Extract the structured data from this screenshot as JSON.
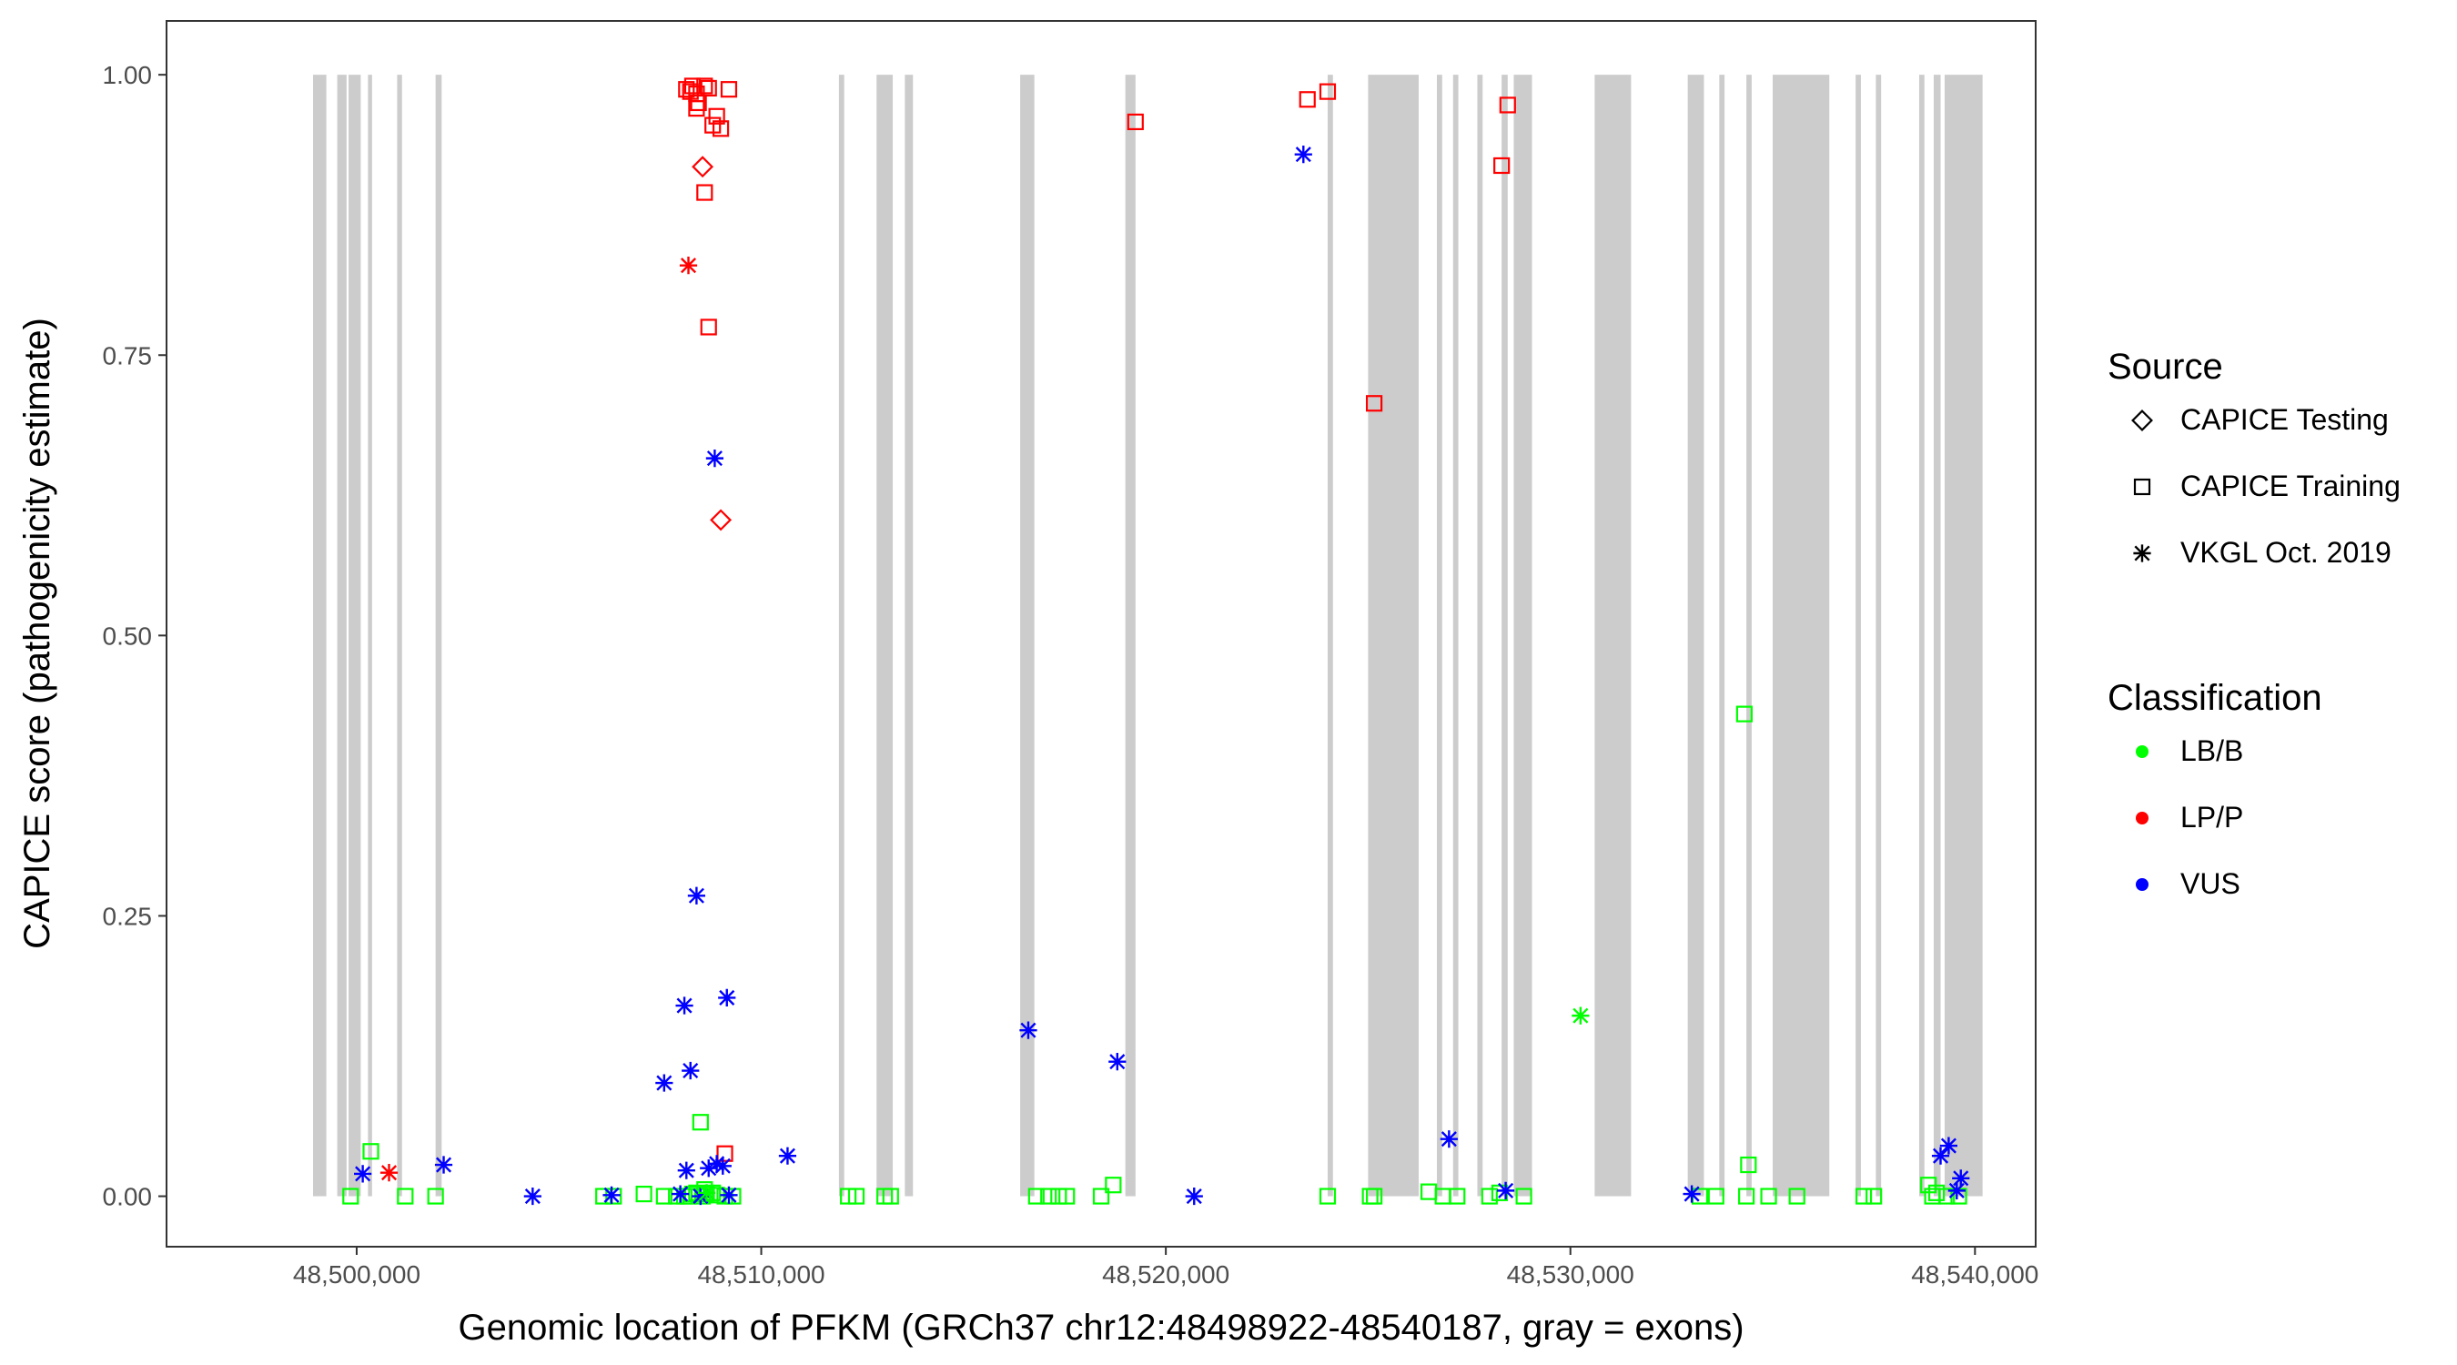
{
  "chart_data": {
    "type": "scatter",
    "xlabel": "Genomic location of PFKM (GRCh37 chr12:48498922-48540187, gray = exons)",
    "ylabel": "CAPICE score (pathogenicity estimate)",
    "xlim": [
      48495300,
      48541500
    ],
    "ylim": [
      -0.045,
      1.048
    ],
    "x_ticks": [
      48500000,
      48510000,
      48520000,
      48530000,
      48540000
    ],
    "x_tick_labels": [
      "48,500,000",
      "48,510,000",
      "48,520,000",
      "48,530,000",
      "48,540,000"
    ],
    "y_ticks": [
      0.0,
      0.25,
      0.5,
      0.75,
      1.0
    ],
    "y_tick_labels": [
      "0.00",
      "0.25",
      "0.50",
      "0.75",
      "1.00"
    ],
    "grid": false,
    "legend_position": "right",
    "legends": [
      {
        "title": "Source",
        "entries": [
          {
            "label": "CAPICE Testing",
            "shape": "diamond"
          },
          {
            "label": "CAPICE Training",
            "shape": "square"
          },
          {
            "label": "VKGL Oct. 2019",
            "shape": "asterisk"
          }
        ]
      },
      {
        "title": "Classification",
        "entries": [
          {
            "label": "LB/B",
            "color": "#00ff00"
          },
          {
            "label": "LP/P",
            "color": "#ff0000"
          },
          {
            "label": "VUS",
            "color": "#0000ff"
          }
        ]
      }
    ],
    "exon_color": "#cccccc",
    "exons": [
      [
        48498922,
        48499250
      ],
      [
        48499520,
        48499750
      ],
      [
        48499800,
        48500100
      ],
      [
        48500280,
        48500380
      ],
      [
        48501000,
        48501120
      ],
      [
        48501950,
        48502100
      ],
      [
        48511920,
        48512050
      ],
      [
        48512850,
        48513250
      ],
      [
        48513550,
        48513750
      ],
      [
        48516400,
        48516750
      ],
      [
        48519000,
        48519250
      ],
      [
        48524000,
        48524130
      ],
      [
        48525000,
        48526250
      ],
      [
        48526700,
        48526830
      ],
      [
        48527100,
        48527230
      ],
      [
        48527700,
        48527830
      ],
      [
        48528300,
        48528450
      ],
      [
        48528600,
        48529050
      ],
      [
        48530600,
        48531500
      ],
      [
        48532900,
        48533300
      ],
      [
        48533680,
        48533810
      ],
      [
        48534350,
        48534480
      ],
      [
        48535000,
        48536400
      ],
      [
        48537050,
        48537180
      ],
      [
        48537550,
        48537680
      ],
      [
        48538620,
        48538750
      ],
      [
        48538980,
        48539150
      ],
      [
        48539250,
        48540187
      ]
    ],
    "series": [
      {
        "source": "CAPICE Testing",
        "classification": "LP/P",
        "points": [
          [
            48508550,
            0.918
          ],
          [
            48509000,
            0.603
          ]
        ]
      },
      {
        "source": "CAPICE Training",
        "classification": "LP/P",
        "points": [
          [
            48508150,
            0.987
          ],
          [
            48508250,
            0.985
          ],
          [
            48508300,
            0.99
          ],
          [
            48508400,
            0.983
          ],
          [
            48508450,
            0.975
          ],
          [
            48508600,
            0.99
          ],
          [
            48508700,
            0.988
          ],
          [
            48508800,
            0.955
          ],
          [
            48508900,
            0.963
          ],
          [
            48509000,
            0.952
          ],
          [
            48509200,
            0.987
          ],
          [
            48508400,
            0.97
          ],
          [
            48508600,
            0.895
          ],
          [
            48508700,
            0.775
          ],
          [
            48509100,
            0.038
          ],
          [
            48519250,
            0.958
          ],
          [
            48523500,
            0.978
          ],
          [
            48524000,
            0.985
          ],
          [
            48525150,
            0.707
          ],
          [
            48528300,
            0.919
          ],
          [
            48528450,
            0.973
          ]
        ]
      },
      {
        "source": "CAPICE Training",
        "classification": "LB/B",
        "points": [
          [
            48499850,
            0.0
          ],
          [
            48500350,
            0.04
          ],
          [
            48501200,
            0.0
          ],
          [
            48501950,
            0.0
          ],
          [
            48506100,
            0.0
          ],
          [
            48506350,
            0.0
          ],
          [
            48507100,
            0.002
          ],
          [
            48507600,
            0.0
          ],
          [
            48507900,
            0.0
          ],
          [
            48508100,
            0.0
          ],
          [
            48508200,
            0.0
          ],
          [
            48508300,
            0.002
          ],
          [
            48508400,
            0.003
          ],
          [
            48508500,
            0.066
          ],
          [
            48508550,
            0.0
          ],
          [
            48508600,
            0.006
          ],
          [
            48508650,
            0.002
          ],
          [
            48508800,
            0.003
          ],
          [
            48508900,
            0.001
          ],
          [
            48509100,
            0.0
          ],
          [
            48509300,
            0.0
          ],
          [
            48512150,
            0.0
          ],
          [
            48512350,
            0.0
          ],
          [
            48513050,
            0.0
          ],
          [
            48513200,
            0.0
          ],
          [
            48516800,
            0.0
          ],
          [
            48517100,
            0.0
          ],
          [
            48517350,
            0.0
          ],
          [
            48517550,
            0.0
          ],
          [
            48518400,
            0.0
          ],
          [
            48518700,
            0.01
          ],
          [
            48524000,
            0.0
          ],
          [
            48525050,
            0.0
          ],
          [
            48525150,
            0.0
          ],
          [
            48526500,
            0.004
          ],
          [
            48526850,
            0.0
          ],
          [
            48527200,
            0.0
          ],
          [
            48528000,
            0.0
          ],
          [
            48528250,
            0.003
          ],
          [
            48528850,
            0.0
          ],
          [
            48533200,
            0.0
          ],
          [
            48533600,
            0.0
          ],
          [
            48534300,
            0.43
          ],
          [
            48534400,
            0.028
          ],
          [
            48534350,
            0.0
          ],
          [
            48534900,
            0.0
          ],
          [
            48535600,
            0.0
          ],
          [
            48537250,
            0.0
          ],
          [
            48537500,
            0.0
          ],
          [
            48538850,
            0.01
          ],
          [
            48538950,
            0.0
          ],
          [
            48539050,
            0.003
          ],
          [
            48539300,
            0.0
          ],
          [
            48539600,
            0.0
          ]
        ]
      },
      {
        "source": "VKGL Oct. 2019",
        "classification": "VUS",
        "points": [
          [
            48500150,
            0.02
          ],
          [
            48502150,
            0.028
          ],
          [
            48504350,
            0.0
          ],
          [
            48506300,
            0.001
          ],
          [
            48507600,
            0.101
          ],
          [
            48508000,
            0.002
          ],
          [
            48508100,
            0.17
          ],
          [
            48508150,
            0.023
          ],
          [
            48508250,
            0.112
          ],
          [
            48508400,
            0.268
          ],
          [
            48508500,
            0.0
          ],
          [
            48508700,
            0.025
          ],
          [
            48508850,
            0.658
          ],
          [
            48508900,
            0.029
          ],
          [
            48509050,
            0.027
          ],
          [
            48509150,
            0.177
          ],
          [
            48509200,
            0.001
          ],
          [
            48510650,
            0.036
          ],
          [
            48516600,
            0.148
          ],
          [
            48518800,
            0.12
          ],
          [
            48520700,
            0.0
          ],
          [
            48523400,
            0.929
          ],
          [
            48527000,
            0.051
          ],
          [
            48528400,
            0.005
          ],
          [
            48533000,
            0.002
          ],
          [
            48539150,
            0.036
          ],
          [
            48539350,
            0.045
          ],
          [
            48539550,
            0.005
          ],
          [
            48539650,
            0.016
          ]
        ]
      },
      {
        "source": "VKGL Oct. 2019",
        "classification": "LP/P",
        "points": [
          [
            48500800,
            0.021
          ],
          [
            48508200,
            0.83
          ]
        ]
      },
      {
        "source": "VKGL Oct. 2019",
        "classification": "LB/B",
        "points": [
          [
            48530250,
            0.161
          ],
          [
            48508650,
            0.003
          ]
        ]
      }
    ],
    "colors": {
      "LB/B": "#00ff00",
      "LP/P": "#ff0000",
      "VUS": "#0000ff"
    }
  }
}
